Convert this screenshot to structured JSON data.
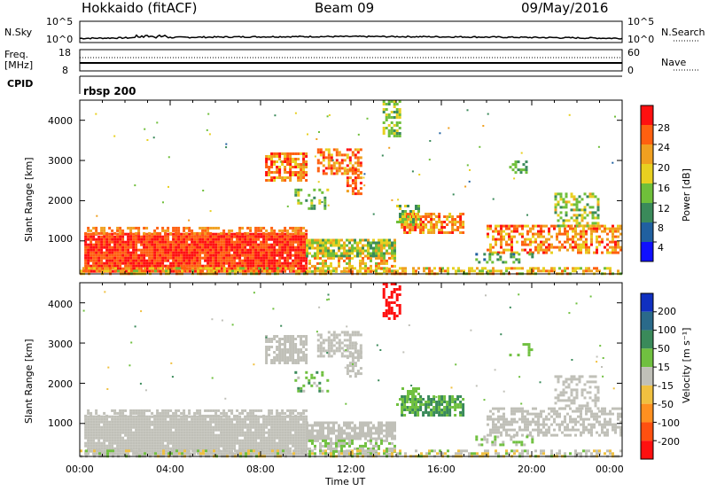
{
  "header": {
    "station": "Hokkaido (fitACF)",
    "beam": "Beam 09",
    "date": "09/May/2016"
  },
  "top_panels": {
    "nsky_label": "N.Sky",
    "nsky_ticks": [
      "10^5",
      "10^0"
    ],
    "nsearch_label": "N.Search",
    "nsearch_ticks": [
      "10^5",
      "10^0"
    ],
    "freq_label_1": "Freq.",
    "freq_label_2": "[MHz]",
    "freq_ticks": [
      "18",
      "8"
    ],
    "nave_label": "Nave",
    "nave_ticks": [
      "60",
      "0"
    ],
    "cpid_label": "CPID",
    "cpid_value": "rbsp 200"
  },
  "colors": {
    "power_scale": [
      "#1010ff",
      "#2060a0",
      "#3a8a5a",
      "#6fbf3a",
      "#e8d020",
      "#f0a020",
      "#ff6010",
      "#ff1010"
    ],
    "velocity_scale": [
      "#1030c0",
      "#2a6a8a",
      "#3a8a5a",
      "#70c040",
      "#c0c0b8",
      "#f0c040",
      "#ff9020",
      "#ff5010",
      "#ff1010"
    ]
  },
  "chart_data": [
    {
      "type": "heatmap",
      "name": "power",
      "xlabel": "",
      "ylabel": "Slant Range [km]",
      "yticks": [
        "1000",
        "2000",
        "3000",
        "4000"
      ],
      "colorbar_label": "Power [dB]",
      "colorbar_ticks": [
        "4",
        "8",
        "12",
        "16",
        "20",
        "24",
        "28"
      ],
      "xlim": [
        0,
        24
      ],
      "ylim": [
        180,
        4500
      ]
    },
    {
      "type": "heatmap",
      "name": "velocity",
      "xlabel": "Time UT",
      "ylabel": "Slant Range [km]",
      "yticks": [
        "1000",
        "2000",
        "3000",
        "4000"
      ],
      "colorbar_label": "Velocity [m s⁻¹]",
      "colorbar_ticks": [
        "200",
        "100",
        "50",
        "15",
        "-15",
        "-50",
        "-100",
        "-200"
      ],
      "xticks": [
        "00:00",
        "04:00",
        "08:00",
        "12:00",
        "16:00",
        "20:00",
        "00:00"
      ],
      "xlim": [
        0,
        24
      ],
      "ylim": [
        180,
        4500
      ]
    }
  ]
}
